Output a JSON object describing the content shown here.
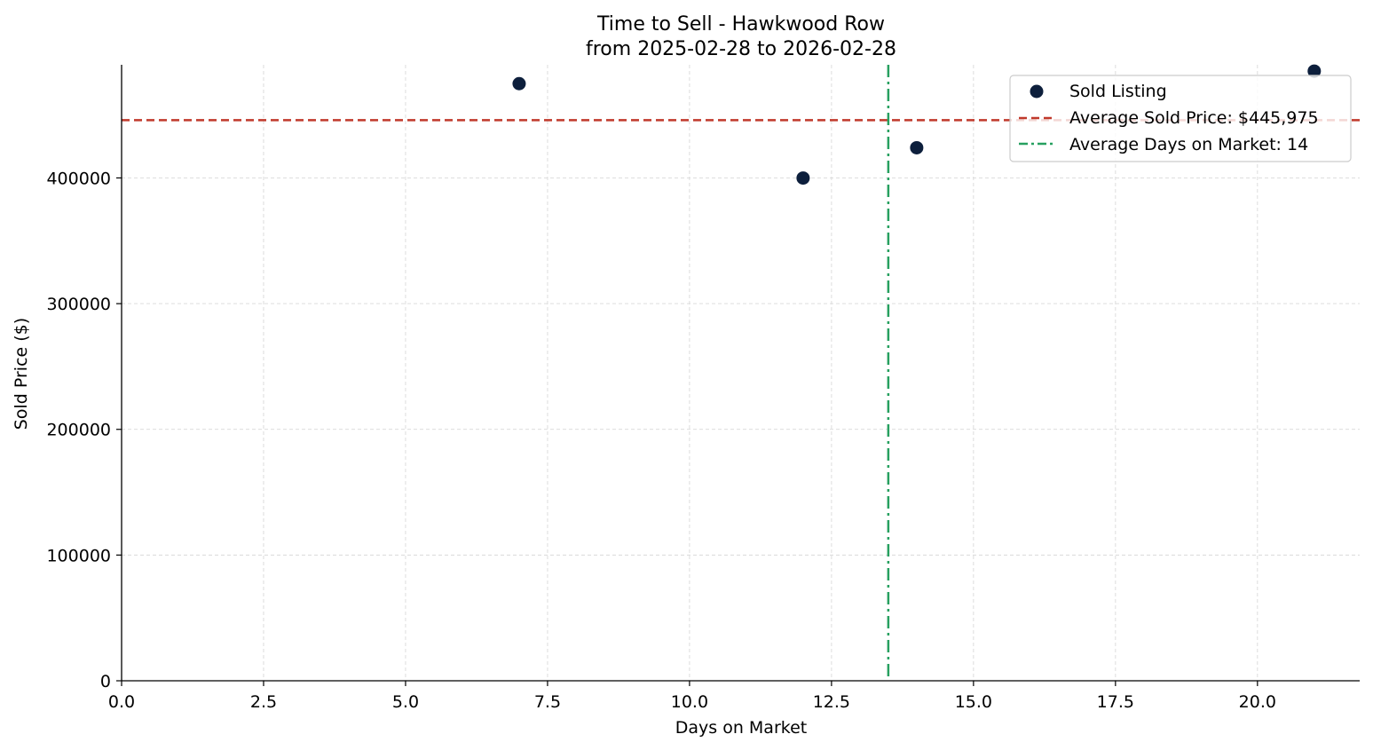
{
  "chart_data": {
    "type": "scatter",
    "title": "Time to Sell - Hawkwood Row",
    "subtitle": "from 2025-02-28 to 2026-02-28",
    "xlabel": "Days on Market",
    "ylabel": "Sold Price ($)",
    "xlim": [
      0,
      21.8
    ],
    "ylim": [
      0,
      490000
    ],
    "xticks": [
      0.0,
      2.5,
      5.0,
      7.5,
      10.0,
      12.5,
      15.0,
      17.5,
      20.0
    ],
    "xtick_labels": [
      "0.0",
      "2.5",
      "5.0",
      "7.5",
      "10.0",
      "12.5",
      "15.0",
      "17.5",
      "20.0"
    ],
    "yticks": [
      0,
      100000,
      200000,
      300000,
      400000
    ],
    "ytick_labels": [
      "0",
      "100000",
      "200000",
      "300000",
      "400000"
    ],
    "grid": true,
    "legend_position": "top-right",
    "series": [
      {
        "name": "Sold Listing",
        "color": "#0d1f3c",
        "points": [
          {
            "x": 7,
            "y": 475000
          },
          {
            "x": 12,
            "y": 399900
          },
          {
            "x": 14,
            "y": 424000
          },
          {
            "x": 21,
            "y": 485000
          }
        ]
      }
    ],
    "reference_lines": [
      {
        "name": "Average Sold Price: $445,975",
        "orientation": "horizontal",
        "value": 445975,
        "color": "#c0392b",
        "style": "dashed"
      },
      {
        "name": "Average Days on Market: 14",
        "orientation": "vertical",
        "value": 13.5,
        "color": "#27a060",
        "style": "dashdot"
      }
    ]
  }
}
